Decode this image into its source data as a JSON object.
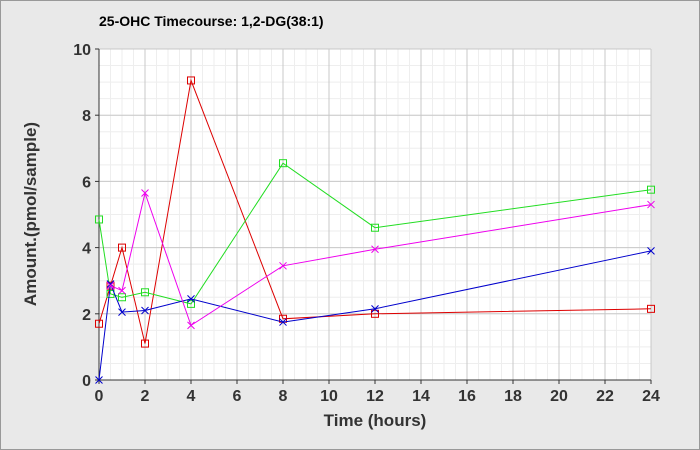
{
  "chart_data": {
    "type": "line",
    "title": "25-OHC Timecourse: 1,2-DG(38:1)",
    "xlabel": "Time (hours)",
    "ylabel": "Amount.(pmol/sample)",
    "xlim": [
      0,
      24
    ],
    "ylim": [
      0,
      10
    ],
    "xticks": [
      0,
      2,
      4,
      6,
      8,
      10,
      12,
      14,
      16,
      18,
      20,
      22,
      24
    ],
    "yticks": [
      0,
      2,
      4,
      6,
      8,
      10
    ],
    "grid": true,
    "legend": "none",
    "series": [
      {
        "color": "#dd0000",
        "marker": "square",
        "x": [
          0,
          0.5,
          1,
          2,
          4,
          8,
          12,
          24
        ],
        "y": [
          1.7,
          2.85,
          4.0,
          1.1,
          9.05,
          1.85,
          2.0,
          2.15
        ]
      },
      {
        "color": "#22dd22",
        "marker": "square",
        "x": [
          0,
          0.5,
          1,
          2,
          4,
          8,
          12,
          24
        ],
        "y": [
          4.85,
          2.6,
          2.5,
          2.65,
          2.3,
          6.55,
          4.6,
          5.75
        ]
      },
      {
        "color": "#0000cc",
        "marker": "x",
        "x": [
          0,
          0.5,
          1,
          2,
          4,
          8,
          12,
          24
        ],
        "y": [
          0,
          2.9,
          2.05,
          2.1,
          2.45,
          1.75,
          2.15,
          3.9
        ]
      },
      {
        "color": "#ee00ee",
        "marker": "x",
        "x": [
          0.5,
          1,
          2,
          4,
          8,
          12,
          24
        ],
        "y": [
          2.85,
          2.7,
          5.65,
          1.65,
          3.45,
          3.95,
          5.3
        ]
      }
    ]
  }
}
